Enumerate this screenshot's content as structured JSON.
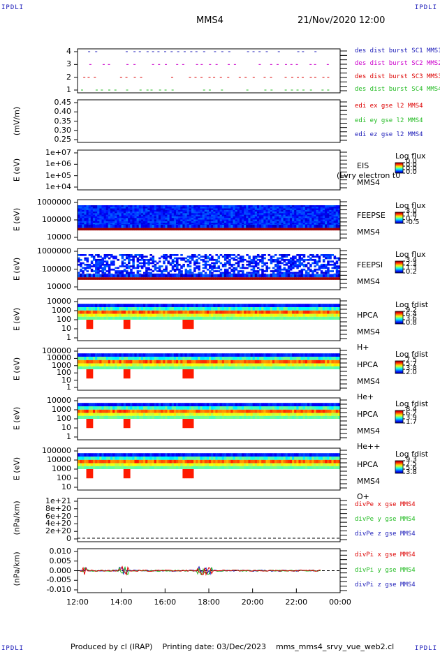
{
  "corners": {
    "top_left": "IPDLI",
    "top_right": "IPDLI",
    "bottom_left": "IPDLI",
    "bottom_right": "IPDLI"
  },
  "header": {
    "spacecraft": "MMS4",
    "datetime": "21/Nov/2020 12:00"
  },
  "footer": {
    "produced": "Produced by cl (IRAP)",
    "printing": "Printing date: 03/Dec/2023",
    "file": "mms_mms4_srvy_vue_web2.cl"
  },
  "colors": {
    "mms1": "#1a1ab8",
    "mms2": "#cc00cc",
    "mms3": "#dd0000",
    "mms4": "#22bb22"
  },
  "chart_data": {
    "type": "stacked time-series panels",
    "x": {
      "ticks": [
        "12:00",
        "14:00",
        "16:00",
        "18:00",
        "20:00",
        "22:00",
        "00:00"
      ],
      "range": [
        "12:00",
        "00:00"
      ]
    },
    "panels": [
      {
        "id": "burst",
        "type": "line",
        "ylabel": "",
        "yticks": [
          "4",
          "3",
          "2",
          "1"
        ],
        "legend": [
          {
            "text": "des dist burst SC1 MMS1",
            "color": "#1a1ab8"
          },
          {
            "text": "des dist burst SC2 MMS2",
            "color": "#cc00cc"
          },
          {
            "text": "des dist burst SC3 MMS3",
            "color": "#dd0000"
          },
          {
            "text": "des dist burst SC4 MMS4",
            "color": "#22bb22"
          }
        ]
      },
      {
        "id": "edi",
        "type": "line",
        "ylabel": "(mV/m)",
        "yticks": [
          "0.45",
          "0.40",
          "0.35",
          "0.30",
          "0.25"
        ],
        "legend": [
          {
            "text": "edi ex gse l2 MMS4",
            "color": "#dd0000"
          },
          {
            "text": "edi ey gse l2 MMS4",
            "color": "#22bb22"
          },
          {
            "text": "edi ez gse l2 MMS4",
            "color": "#1a1ab8"
          }
        ]
      },
      {
        "id": "eis",
        "type": "heatmap",
        "ylabel": "E (eV)",
        "yticks": [
          "1e+07",
          "1e+06",
          "1e+05",
          "1e+04"
        ],
        "right": [
          "EIS",
          "MMS4"
        ],
        "overlay": "(Lvry electron t0",
        "colorbar": {
          "title": "Log flux",
          "values": [
            "0.0",
            "0.0",
            "0.0",
            "0.0"
          ]
        }
      },
      {
        "id": "feepse",
        "type": "heatmap",
        "ylabel": "E (eV)",
        "yticks": [
          "1000000",
          "100000",
          "10000"
        ],
        "right": [
          "FEEPSE",
          "MMS4"
        ],
        "colorbar": {
          "title": "Log flux",
          "values": [
            "3.0",
            "1.8",
            "0.7",
            "-0.5"
          ]
        }
      },
      {
        "id": "feepsi",
        "type": "heatmap",
        "ylabel": "E (eV)",
        "yticks": [
          "1000000",
          "100000",
          "10000"
        ],
        "right": [
          "FEEPSI",
          "MMS4"
        ],
        "colorbar": {
          "title": "Log flux",
          "values": [
            "3.4",
            "2.3",
            "1.3",
            "0.2"
          ]
        }
      },
      {
        "id": "hpca_h",
        "type": "heatmap",
        "ylabel": "E (eV)",
        "yticks": [
          "10000",
          "1000",
          "100",
          "10",
          "1"
        ],
        "right": [
          "HPCA",
          "MMS4",
          "H+"
        ],
        "colorbar": {
          "title": "Log fdist",
          "values": [
            "9.2",
            "6.4",
            "3.6",
            "0.8"
          ]
        }
      },
      {
        "id": "hpca_he",
        "type": "heatmap",
        "ylabel": "E (eV)",
        "yticks": [
          "100000",
          "10000",
          "1000",
          "100",
          "10",
          "1"
        ],
        "right": [
          "HPCA",
          "MMS4",
          "He+"
        ],
        "colorbar": {
          "title": "Log fdist",
          "values": [
            "7.5",
            "5.7",
            "3.8",
            "2.0"
          ]
        }
      },
      {
        "id": "hpca_hepp",
        "type": "heatmap",
        "ylabel": "E (eV)",
        "yticks": [
          "10000",
          "1000",
          "100",
          "10",
          "1"
        ],
        "right": [
          "HPCA",
          "MMS4",
          "He++"
        ],
        "colorbar": {
          "title": "Log fdist",
          "values": [
            "8.4",
            "6.2",
            "3.9",
            "1.7"
          ]
        }
      },
      {
        "id": "hpca_o",
        "type": "heatmap",
        "ylabel": "E (eV)",
        "yticks": [
          "100000",
          "10000",
          "1000",
          "100",
          "10"
        ],
        "right": [
          "HPCA",
          "MMS4",
          "O+"
        ],
        "colorbar": {
          "title": "Log fdist",
          "values": [
            "9.3",
            "7.5",
            "5.6",
            "3.8"
          ]
        }
      },
      {
        "id": "divpe",
        "type": "line",
        "ylabel": "(nPa/km)",
        "yticks": [
          "1e+21",
          "8e+20",
          "6e+20",
          "4e+20",
          "2e+20",
          "0"
        ],
        "legend": [
          {
            "text": "divPe x gse MMS4",
            "color": "#dd0000"
          },
          {
            "text": "divPe y gse MMS4",
            "color": "#22bb22"
          },
          {
            "text": "divPe z gse MMS4",
            "color": "#1a1ab8"
          }
        ]
      },
      {
        "id": "divpi",
        "type": "line",
        "ylabel": "(nPa/km)",
        "yticks": [
          "0.010",
          "0.005",
          "0.000",
          "-0.005",
          "-0.010"
        ],
        "legend": [
          {
            "text": "divPi x gse MMS4",
            "color": "#dd0000"
          },
          {
            "text": "divPi y gse MMS4",
            "color": "#22bb22"
          },
          {
            "text": "divPi z gse MMS4",
            "color": "#1a1ab8"
          }
        ]
      }
    ]
  }
}
